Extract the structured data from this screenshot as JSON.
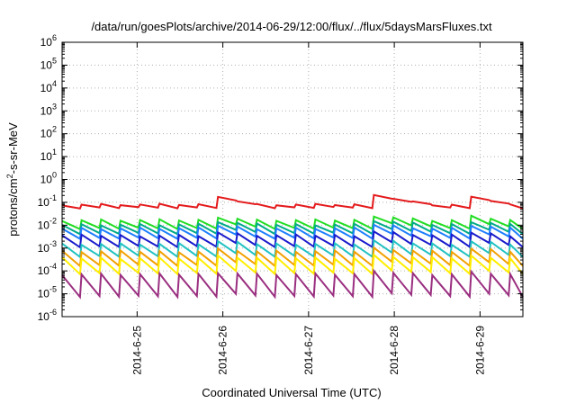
{
  "chart_data": {
    "type": "line",
    "title": "/data/run/goesPlots/archive/2014-06-29/12:00/flux/../flux/5daysMarsFluxes.txt",
    "xlabel": "Coordinated Universal Time (UTC)",
    "ylabel": {
      "prefix": "protons/cm",
      "sup": "2",
      "suffix": "-s-sr-MeV"
    },
    "yscale": "log",
    "ylim": [
      1e-06,
      1000000.0
    ],
    "ytick_exponents": [
      -6,
      -5,
      -4,
      -3,
      -2,
      -1,
      0,
      1,
      2,
      3,
      4,
      5,
      6
    ],
    "ytick_base": "10",
    "xlim": [
      "2014-06-24 03:00",
      "2014-06-29 12:00"
    ],
    "xticks": [
      {
        "label": "2014-6-25",
        "at": "2014-06-25 00:00"
      },
      {
        "label": "2014-6-26",
        "at": "2014-06-26 00:00"
      },
      {
        "label": "2014-6-27",
        "at": "2014-06-27 00:00"
      },
      {
        "label": "2014-6-28",
        "at": "2014-06-28 00:00"
      },
      {
        "label": "2014-6-29",
        "at": "2014-06-29 00:00"
      }
    ],
    "grid": true,
    "series": [
      {
        "color": "#e41a1c",
        "base": 0.06,
        "amp": 1.35,
        "burst": 2.4,
        "teeth": 4.4
      },
      {
        "color": "#22dd22",
        "base": 0.0075,
        "amp": 2.2,
        "burst": 1.6,
        "teeth": 4.4
      },
      {
        "color": "#00aa88",
        "base": 0.0045,
        "amp": 2.4,
        "burst": 1.5,
        "teeth": 4.4
      },
      {
        "color": "#1e7fff",
        "base": 0.0028,
        "amp": 2.6,
        "burst": 1.5,
        "teeth": 4.4
      },
      {
        "color": "#1a1acc",
        "base": 0.0012,
        "amp": 3.0,
        "burst": 1.5,
        "teeth": 4.4
      },
      {
        "color": "#22c2c2",
        "base": 0.00045,
        "amp": 3.4,
        "burst": 1.4,
        "teeth": 4.4
      },
      {
        "color": "#f2a000",
        "base": 0.00018,
        "amp": 4.0,
        "burst": 1.4,
        "teeth": 4.4
      },
      {
        "color": "#ffee00",
        "base": 8e-05,
        "amp": 4.6,
        "burst": 1.3,
        "teeth": 4.4
      },
      {
        "color": "#9a2f80",
        "base": 8e-06,
        "amp": 9.0,
        "burst": 1.3,
        "teeth": 4.4
      }
    ]
  }
}
